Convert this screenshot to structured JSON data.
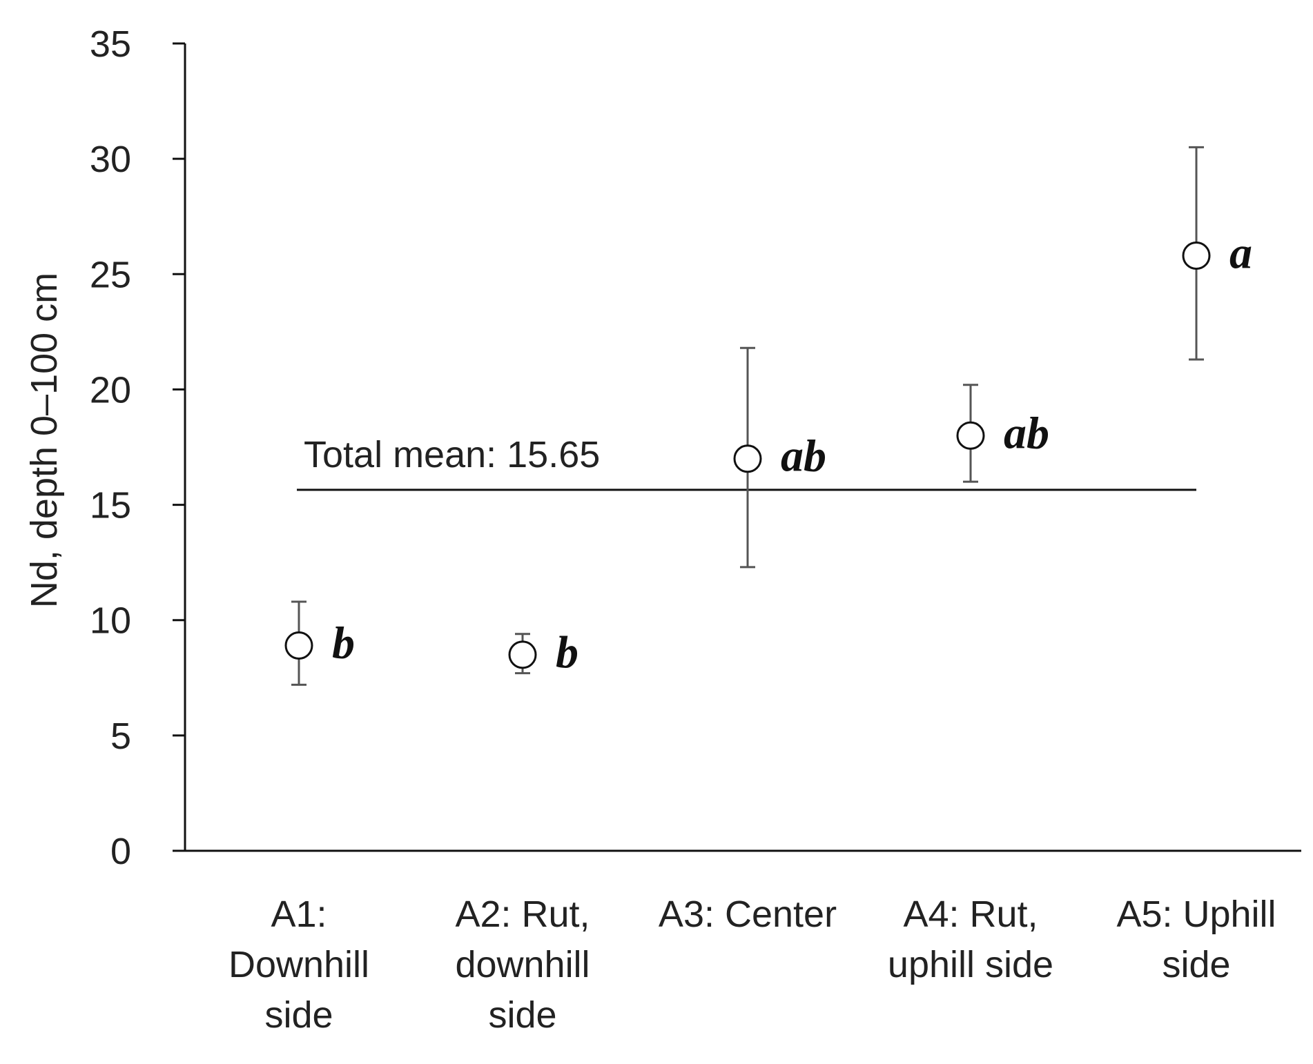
{
  "chart_data": {
    "type": "scatter",
    "ylabel": "Nd, depth 0–100 cm",
    "xlabel": "",
    "ylim": [
      0,
      35
    ],
    "yticks": [
      0,
      5,
      10,
      15,
      20,
      25,
      30,
      35
    ],
    "grid": false,
    "categories": [
      [
        "A1:",
        "Downhill",
        "side"
      ],
      [
        "A2: Rut,",
        "downhill",
        "side"
      ],
      [
        "A3: Center"
      ],
      [
        "A4: Rut,",
        "uphill side"
      ],
      [
        "A5: Uphill",
        "side"
      ]
    ],
    "values": [
      8.9,
      8.5,
      17.0,
      18.0,
      25.8
    ],
    "error_low": [
      7.2,
      7.7,
      12.3,
      16.0,
      21.3
    ],
    "error_high": [
      10.8,
      9.4,
      21.8,
      20.2,
      30.5
    ],
    "significance": [
      "b",
      "b",
      "ab",
      "ab",
      "a"
    ],
    "reference_line": {
      "value": 15.65,
      "label": "Total mean: 15.65"
    },
    "colors": {
      "axis": "#111111",
      "marker_fill": "#ffffff",
      "marker_stroke": "#111111",
      "error_bar": "#555555",
      "mean_line": "#111111"
    }
  }
}
